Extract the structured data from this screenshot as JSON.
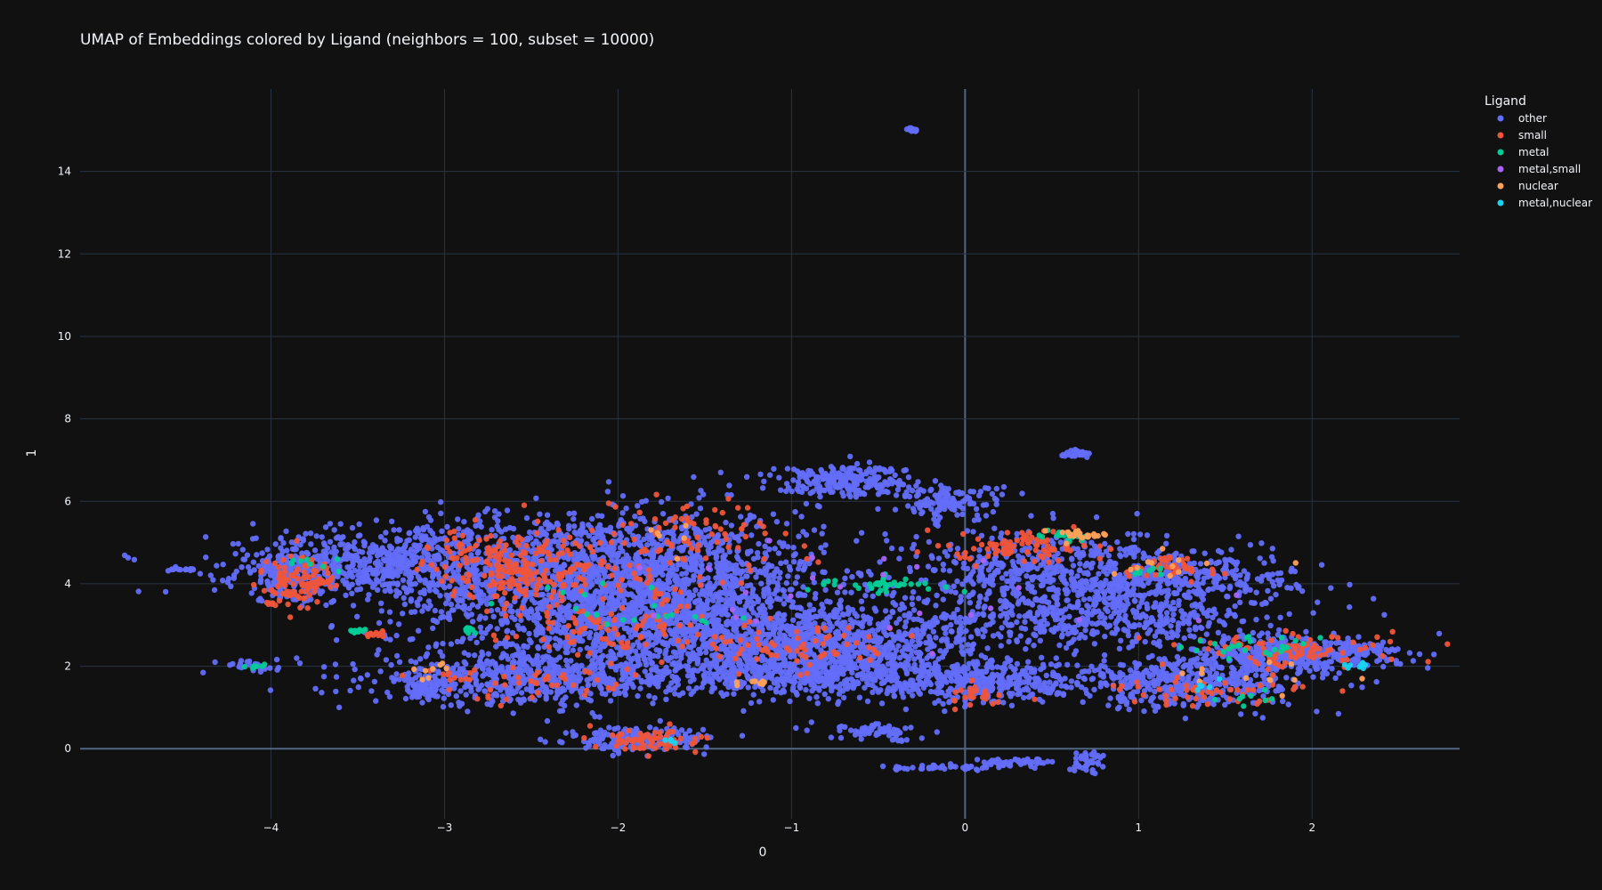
{
  "chart_data": {
    "type": "scatter",
    "title": "UMAP of Embeddings colored by Ligand (neighbors = 100, subset = 10000)",
    "xlabel": "0",
    "ylabel": "1",
    "xlim": [
      -5.1,
      2.85
    ],
    "ylim": [
      -1.7,
      16
    ],
    "xticks": [
      -4,
      -3,
      -2,
      -1,
      0,
      1,
      2
    ],
    "xtick_labels": [
      "−4",
      "−3",
      "−2",
      "−1",
      "0",
      "1",
      "2"
    ],
    "yticks": [
      0,
      2,
      4,
      6,
      8,
      10,
      12,
      14
    ],
    "yticks_labels": [
      "0",
      "2",
      "4",
      "6",
      "8",
      "10",
      "12",
      "14"
    ],
    "grid": true,
    "background": "#111111",
    "grid_color": "#283442",
    "zeroline_color": "#506784",
    "legend_title": "Ligand",
    "legend_position": "top-right",
    "series": [
      {
        "name": "other",
        "color": "#636efa",
        "clusters": [
          {
            "cx": -2.4,
            "cy": 4.3,
            "sx": 0.6,
            "sy": 0.7,
            "n": 1200
          },
          {
            "cx": -1.6,
            "cy": 4.0,
            "sx": 0.4,
            "sy": 0.9,
            "n": 900
          },
          {
            "cx": -3.4,
            "cy": 4.5,
            "sx": 0.45,
            "sy": 0.4,
            "n": 450
          },
          {
            "cx": -3.9,
            "cy": 4.2,
            "sx": 0.15,
            "sy": 0.3,
            "n": 150
          },
          {
            "cx": -2.5,
            "cy": 1.7,
            "sx": 0.45,
            "sy": 0.3,
            "n": 600
          },
          {
            "cx": -1.8,
            "cy": 2.9,
            "sx": 0.6,
            "sy": 0.5,
            "n": 700
          },
          {
            "cx": -0.8,
            "cy": 2.5,
            "sx": 0.5,
            "sy": 0.5,
            "n": 900
          },
          {
            "cx": -1.0,
            "cy": 1.8,
            "sx": 0.4,
            "sy": 0.25,
            "n": 400
          },
          {
            "cx": -0.7,
            "cy": 6.5,
            "sx": 0.2,
            "sy": 0.2,
            "n": 250
          },
          {
            "cx": -0.1,
            "cy": 6.0,
            "sx": 0.15,
            "sy": 0.2,
            "n": 120
          },
          {
            "cx": 0.1,
            "cy": 1.6,
            "sx": 0.3,
            "sy": 0.25,
            "n": 350
          },
          {
            "cx": 0.5,
            "cy": 4.3,
            "sx": 0.4,
            "sy": 0.5,
            "n": 500
          },
          {
            "cx": 0.8,
            "cy": 3.2,
            "sx": 0.5,
            "sy": 0.4,
            "n": 500
          },
          {
            "cx": 1.3,
            "cy": 4.2,
            "sx": 0.3,
            "sy": 0.3,
            "n": 250
          },
          {
            "cx": 1.3,
            "cy": 1.6,
            "sx": 0.35,
            "sy": 0.3,
            "n": 450
          },
          {
            "cx": 1.9,
            "cy": 2.3,
            "sx": 0.3,
            "sy": 0.2,
            "n": 400
          },
          {
            "cx": -1.9,
            "cy": 0.2,
            "sx": 0.2,
            "sy": 0.15,
            "n": 180
          },
          {
            "cx": -0.5,
            "cy": 0.4,
            "sx": 0.15,
            "sy": 0.1,
            "n": 60
          },
          {
            "cx": -3.1,
            "cy": 1.4,
            "sx": 0.05,
            "sy": 0.1,
            "n": 60
          },
          {
            "cx": -4.5,
            "cy": 4.35,
            "sx": 0.05,
            "sy": 0.02,
            "n": 15
          },
          {
            "cx": -4.1,
            "cy": 2.0,
            "sx": 0.1,
            "sy": 0.08,
            "n": 25
          },
          {
            "cx": -0.31,
            "cy": 15.0,
            "sx": 0.02,
            "sy": 0.02,
            "n": 10
          },
          {
            "cx": 0.65,
            "cy": 7.15,
            "sx": 0.05,
            "sy": 0.05,
            "n": 25
          },
          {
            "cx": 0.3,
            "cy": -0.35,
            "sx": 0.1,
            "sy": 0.05,
            "n": 50
          },
          {
            "cx": -0.1,
            "cy": -0.45,
            "sx": 0.15,
            "sy": 0.03,
            "n": 40
          },
          {
            "cx": 0.7,
            "cy": -0.3,
            "sx": 0.05,
            "sy": 0.15,
            "n": 40
          }
        ]
      },
      {
        "name": "small",
        "color": "#EF553B",
        "clusters": [
          {
            "cx": -3.85,
            "cy": 4.1,
            "sx": 0.12,
            "sy": 0.3,
            "n": 110
          },
          {
            "cx": -2.7,
            "cy": 4.6,
            "sx": 0.2,
            "sy": 0.4,
            "n": 110
          },
          {
            "cx": -2.4,
            "cy": 4.2,
            "sx": 0.3,
            "sy": 0.4,
            "n": 130
          },
          {
            "cx": -2.1,
            "cy": 3.0,
            "sx": 0.3,
            "sy": 0.4,
            "n": 90
          },
          {
            "cx": -1.6,
            "cy": 5.0,
            "sx": 0.3,
            "sy": 0.5,
            "n": 90
          },
          {
            "cx": -1.0,
            "cy": 2.5,
            "sx": 0.3,
            "sy": 0.3,
            "n": 70
          },
          {
            "cx": -1.8,
            "cy": 0.2,
            "sx": 0.15,
            "sy": 0.15,
            "n": 70
          },
          {
            "cx": 0.35,
            "cy": 4.9,
            "sx": 0.2,
            "sy": 0.2,
            "n": 90
          },
          {
            "cx": 1.2,
            "cy": 4.4,
            "sx": 0.12,
            "sy": 0.15,
            "n": 45
          },
          {
            "cx": 1.9,
            "cy": 2.4,
            "sx": 0.3,
            "sy": 0.2,
            "n": 90
          },
          {
            "cx": 1.4,
            "cy": 1.4,
            "sx": 0.3,
            "sy": 0.2,
            "n": 50
          },
          {
            "cx": -3.4,
            "cy": 2.75,
            "sx": 0.03,
            "sy": 0.04,
            "n": 12
          },
          {
            "cx": -2.5,
            "cy": 1.6,
            "sx": 0.3,
            "sy": 0.2,
            "n": 50
          },
          {
            "cx": 0.1,
            "cy": 1.3,
            "sx": 0.1,
            "sy": 0.15,
            "n": 25
          }
        ]
      },
      {
        "name": "metal",
        "color": "#00cc96",
        "clusters": [
          {
            "cx": -3.5,
            "cy": 2.85,
            "sx": 0.03,
            "sy": 0.02,
            "n": 12
          },
          {
            "cx": -0.5,
            "cy": 4.0,
            "sx": 0.2,
            "sy": 0.1,
            "n": 40
          },
          {
            "cx": 0.6,
            "cy": 5.15,
            "sx": 0.08,
            "sy": 0.05,
            "n": 18
          },
          {
            "cx": 1.7,
            "cy": 2.5,
            "sx": 0.2,
            "sy": 0.15,
            "n": 25
          },
          {
            "cx": -2.0,
            "cy": 3.4,
            "sx": 0.3,
            "sy": 0.3,
            "n": 20
          },
          {
            "cx": -3.8,
            "cy": 4.5,
            "sx": 0.1,
            "sy": 0.1,
            "n": 8
          },
          {
            "cx": -2.85,
            "cy": 2.9,
            "sx": 0.03,
            "sy": 0.08,
            "n": 8
          },
          {
            "cx": 1.05,
            "cy": 4.3,
            "sx": 0.05,
            "sy": 0.08,
            "n": 8
          },
          {
            "cx": -4.05,
            "cy": 2.0,
            "sx": 0.05,
            "sy": 0.03,
            "n": 6
          },
          {
            "cx": 1.6,
            "cy": 1.2,
            "sx": 0.15,
            "sy": 0.1,
            "n": 8
          }
        ]
      },
      {
        "name": "metal,small",
        "color": "#ab63fa",
        "clusters": [
          {
            "cx": -1.2,
            "cy": 3.9,
            "sx": 0.5,
            "sy": 0.5,
            "n": 15
          },
          {
            "cx": 0.5,
            "cy": 3.5,
            "sx": 0.5,
            "sy": 0.5,
            "n": 10
          }
        ]
      },
      {
        "name": "nuclear",
        "color": "#FFA15A",
        "clusters": [
          {
            "cx": 0.65,
            "cy": 5.2,
            "sx": 0.06,
            "sy": 0.06,
            "n": 25
          },
          {
            "cx": -3.05,
            "cy": 1.9,
            "sx": 0.05,
            "sy": 0.1,
            "n": 8
          },
          {
            "cx": 1.2,
            "cy": 4.5,
            "sx": 0.3,
            "sy": 0.2,
            "n": 12
          },
          {
            "cx": -1.15,
            "cy": 1.6,
            "sx": 0.08,
            "sy": 0.05,
            "n": 8
          },
          {
            "cx": 1.6,
            "cy": 1.8,
            "sx": 0.3,
            "sy": 0.3,
            "n": 12
          },
          {
            "cx": -1.7,
            "cy": 5.4,
            "sx": 0.1,
            "sy": 0.2,
            "n": 6
          }
        ]
      },
      {
        "name": "metal,nuclear",
        "color": "#19d3f3",
        "clusters": [
          {
            "cx": 2.25,
            "cy": 2.0,
            "sx": 0.05,
            "sy": 0.04,
            "n": 8
          },
          {
            "cx": 1.4,
            "cy": 1.5,
            "sx": 0.1,
            "sy": 0.1,
            "n": 5
          },
          {
            "cx": -1.7,
            "cy": 0.2,
            "sx": 0.05,
            "sy": 0.05,
            "n": 4
          }
        ]
      }
    ]
  }
}
